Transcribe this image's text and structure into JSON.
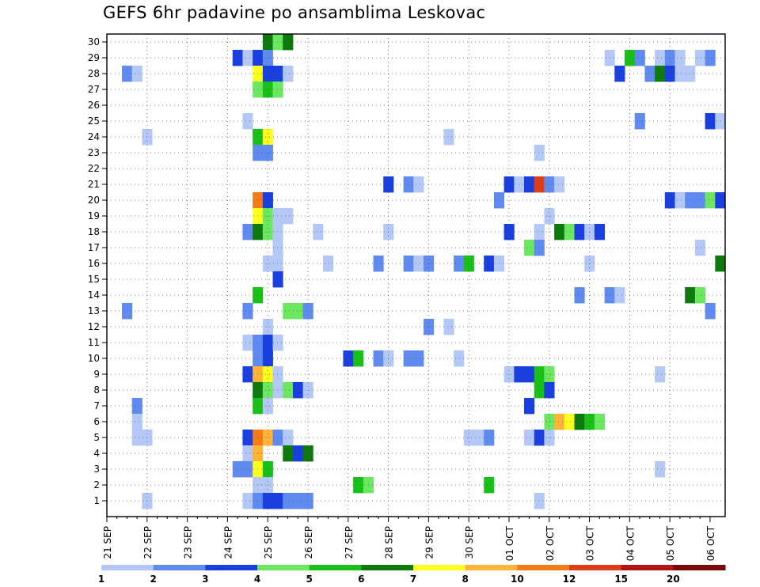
{
  "chart_data": {
    "type": "heatmap",
    "title": "GEFS 6hr padavine po ansamblima Leskovac",
    "x_ticks": [
      "21 SEP",
      "22 SEP",
      "23 SEP",
      "24 SEP",
      "25 SEP",
      "26 SEP",
      "27 SEP",
      "28 SEP",
      "29 SEP",
      "30 SEP",
      "01 OCT",
      "02 OCT",
      "03 OCT",
      "04 OCT",
      "05 OCT",
      "06 OCT"
    ],
    "x_range": [
      "2019-09-21 00Z",
      "2019-10-06 06Z"
    ],
    "x_step_hours": 6,
    "y_ticks": [
      1,
      2,
      3,
      4,
      5,
      6,
      7,
      8,
      9,
      10,
      11,
      12,
      13,
      14,
      15,
      16,
      17,
      18,
      19,
      20,
      21,
      22,
      23,
      24,
      25,
      26,
      27,
      28,
      29,
      30
    ],
    "grid": "dotted",
    "legend": {
      "position": "bottom",
      "bins": [
        {
          "label": "1",
          "color": "#b4c8f8"
        },
        {
          "label": "2",
          "color": "#5f8af0"
        },
        {
          "label": "3",
          "color": "#1a3fe0"
        },
        {
          "label": "4",
          "color": "#6ce860"
        },
        {
          "label": "5",
          "color": "#18c018"
        },
        {
          "label": "6",
          "color": "#0e7a0e"
        },
        {
          "label": "7",
          "color": "#ffff20"
        },
        {
          "label": "8",
          "color": "#ffb438"
        },
        {
          "label": "10",
          "color": "#f57a18"
        },
        {
          "label": "12",
          "color": "#e03c18"
        },
        {
          "label": "15",
          "color": "#b41414"
        },
        {
          "label": "20",
          "color": "#780a0a"
        }
      ]
    },
    "cells": [
      [
        "25 SEP 00Z",
        30,
        "6"
      ],
      [
        "25 SEP 06Z",
        30,
        "4"
      ],
      [
        "25 SEP 12Z",
        30,
        "6"
      ],
      [
        "24 SEP 06Z",
        29,
        "3"
      ],
      [
        "24 SEP 12Z",
        29,
        "1"
      ],
      [
        "24 SEP 18Z",
        29,
        "3"
      ],
      [
        "25 SEP 00Z",
        29,
        "2"
      ],
      [
        "03 OCT 12Z",
        29,
        "1"
      ],
      [
        "04 OCT 00Z",
        29,
        "5"
      ],
      [
        "04 OCT 06Z",
        29,
        "2"
      ],
      [
        "04 OCT 18Z",
        29,
        "1"
      ],
      [
        "05 OCT 00Z",
        29,
        "2"
      ],
      [
        "05 OCT 06Z",
        29,
        "1"
      ],
      [
        "05 OCT 18Z",
        29,
        "1"
      ],
      [
        "06 OCT 00Z",
        29,
        "2"
      ],
      [
        "21 SEP 12Z",
        28,
        "2"
      ],
      [
        "21 SEP 18Z",
        28,
        "1"
      ],
      [
        "24 SEP 18Z",
        28,
        "7"
      ],
      [
        "25 SEP 00Z",
        28,
        "3"
      ],
      [
        "25 SEP 06Z",
        28,
        "3"
      ],
      [
        "25 SEP 12Z",
        28,
        "1"
      ],
      [
        "03 OCT 18Z",
        28,
        "3"
      ],
      [
        "04 OCT 12Z",
        28,
        "2"
      ],
      [
        "04 OCT 18Z",
        28,
        "6"
      ],
      [
        "05 OCT 00Z",
        28,
        "3"
      ],
      [
        "05 OCT 06Z",
        28,
        "1"
      ],
      [
        "05 OCT 12Z",
        28,
        "1"
      ],
      [
        "24 SEP 18Z",
        27,
        "4"
      ],
      [
        "25 SEP 00Z",
        27,
        "5"
      ],
      [
        "25 SEP 06Z",
        27,
        "4"
      ],
      [
        "24 SEP 12Z",
        25,
        "1"
      ],
      [
        "04 OCT 06Z",
        25,
        "2"
      ],
      [
        "06 OCT 00Z",
        25,
        "3"
      ],
      [
        "06 OCT 06Z",
        25,
        "1"
      ],
      [
        "22 SEP 00Z",
        24,
        "1"
      ],
      [
        "24 SEP 18Z",
        24,
        "5"
      ],
      [
        "25 SEP 00Z",
        24,
        "7"
      ],
      [
        "29 SEP 12Z",
        24,
        "1"
      ],
      [
        "24 SEP 18Z",
        23,
        "2"
      ],
      [
        "25 SEP 00Z",
        23,
        "2"
      ],
      [
        "01 OCT 18Z",
        23,
        "1"
      ],
      [
        "28 SEP 00Z",
        21,
        "3"
      ],
      [
        "28 SEP 12Z",
        21,
        "2"
      ],
      [
        "28 SEP 18Z",
        21,
        "1"
      ],
      [
        "01 OCT 00Z",
        21,
        "3"
      ],
      [
        "01 OCT 06Z",
        21,
        "1"
      ],
      [
        "01 OCT 12Z",
        21,
        "3"
      ],
      [
        "01 OCT 18Z",
        21,
        "12"
      ],
      [
        "02 OCT 00Z",
        21,
        "2"
      ],
      [
        "02 OCT 06Z",
        21,
        "1"
      ],
      [
        "24 SEP 18Z",
        20,
        "10"
      ],
      [
        "25 SEP 00Z",
        20,
        "3"
      ],
      [
        "30 SEP 18Z",
        20,
        "2"
      ],
      [
        "05 OCT 00Z",
        20,
        "3"
      ],
      [
        "05 OCT 06Z",
        20,
        "1"
      ],
      [
        "05 OCT 12Z",
        20,
        "2"
      ],
      [
        "05 OCT 18Z",
        20,
        "2"
      ],
      [
        "06 OCT 00Z",
        20,
        "4"
      ],
      [
        "06 OCT 06Z",
        20,
        "3"
      ],
      [
        "24 SEP 18Z",
        19,
        "7"
      ],
      [
        "25 SEP 00Z",
        19,
        "4"
      ],
      [
        "25 SEP 06Z",
        19,
        "1"
      ],
      [
        "25 SEP 12Z",
        19,
        "1"
      ],
      [
        "02 OCT 00Z",
        19,
        "1"
      ],
      [
        "24 SEP 12Z",
        18,
        "2"
      ],
      [
        "24 SEP 18Z",
        18,
        "6"
      ],
      [
        "25 SEP 00Z",
        18,
        "4"
      ],
      [
        "25 SEP 06Z",
        18,
        "1"
      ],
      [
        "26 SEP 06Z",
        18,
        "1"
      ],
      [
        "28 SEP 00Z",
        18,
        "1"
      ],
      [
        "01 OCT 00Z",
        18,
        "3"
      ],
      [
        "01 OCT 18Z",
        18,
        "1"
      ],
      [
        "02 OCT 06Z",
        18,
        "6"
      ],
      [
        "02 OCT 12Z",
        18,
        "4"
      ],
      [
        "02 OCT 18Z",
        18,
        "3"
      ],
      [
        "03 OCT 00Z",
        18,
        "1"
      ],
      [
        "03 OCT 06Z",
        18,
        "3"
      ],
      [
        "25 SEP 06Z",
        17,
        "1"
      ],
      [
        "01 OCT 12Z",
        17,
        "4"
      ],
      [
        "01 OCT 18Z",
        17,
        "2"
      ],
      [
        "05 OCT 18Z",
        17,
        "1"
      ],
      [
        "25 SEP 00Z",
        16,
        "1"
      ],
      [
        "25 SEP 06Z",
        16,
        "1"
      ],
      [
        "26 SEP 12Z",
        16,
        "1"
      ],
      [
        "27 SEP 18Z",
        16,
        "2"
      ],
      [
        "28 SEP 12Z",
        16,
        "2"
      ],
      [
        "28 SEP 18Z",
        16,
        "1"
      ],
      [
        "29 SEP 00Z",
        16,
        "2"
      ],
      [
        "29 SEP 18Z",
        16,
        "2"
      ],
      [
        "30 SEP 00Z",
        16,
        "5"
      ],
      [
        "30 SEP 12Z",
        16,
        "3"
      ],
      [
        "30 SEP 18Z",
        16,
        "1"
      ],
      [
        "03 OCT 00Z",
        16,
        "1"
      ],
      [
        "06 OCT 06Z",
        16,
        "6"
      ],
      [
        "25 SEP 06Z",
        15,
        "3"
      ],
      [
        "24 SEP 18Z",
        14,
        "5"
      ],
      [
        "02 OCT 18Z",
        14,
        "2"
      ],
      [
        "03 OCT 12Z",
        14,
        "2"
      ],
      [
        "03 OCT 18Z",
        14,
        "1"
      ],
      [
        "05 OCT 12Z",
        14,
        "6"
      ],
      [
        "05 OCT 18Z",
        14,
        "4"
      ],
      [
        "21 SEP 12Z",
        13,
        "2"
      ],
      [
        "24 SEP 12Z",
        13,
        "2"
      ],
      [
        "25 SEP 12Z",
        13,
        "4"
      ],
      [
        "25 SEP 18Z",
        13,
        "4"
      ],
      [
        "26 SEP 00Z",
        13,
        "2"
      ],
      [
        "06 OCT 00Z",
        13,
        "2"
      ],
      [
        "25 SEP 00Z",
        12,
        "1"
      ],
      [
        "29 SEP 00Z",
        12,
        "2"
      ],
      [
        "29 SEP 12Z",
        12,
        "1"
      ],
      [
        "24 SEP 12Z",
        11,
        "1"
      ],
      [
        "24 SEP 18Z",
        11,
        "2"
      ],
      [
        "25 SEP 00Z",
        11,
        "3"
      ],
      [
        "25 SEP 06Z",
        11,
        "1"
      ],
      [
        "24 SEP 18Z",
        10,
        "2"
      ],
      [
        "25 SEP 00Z",
        10,
        "3"
      ],
      [
        "27 SEP 00Z",
        10,
        "3"
      ],
      [
        "27 SEP 06Z",
        10,
        "5"
      ],
      [
        "27 SEP 18Z",
        10,
        "2"
      ],
      [
        "28 SEP 00Z",
        10,
        "1"
      ],
      [
        "28 SEP 12Z",
        10,
        "2"
      ],
      [
        "28 SEP 18Z",
        10,
        "2"
      ],
      [
        "29 SEP 18Z",
        10,
        "1"
      ],
      [
        "24 SEP 12Z",
        9,
        "3"
      ],
      [
        "24 SEP 18Z",
        9,
        "8"
      ],
      [
        "25 SEP 00Z",
        9,
        "7"
      ],
      [
        "25 SEP 06Z",
        9,
        "1"
      ],
      [
        "01 OCT 00Z",
        9,
        "1"
      ],
      [
        "01 OCT 06Z",
        9,
        "3"
      ],
      [
        "01 OCT 12Z",
        9,
        "3"
      ],
      [
        "01 OCT 18Z",
        9,
        "5"
      ],
      [
        "02 OCT 00Z",
        9,
        "4"
      ],
      [
        "04 OCT 18Z",
        9,
        "1"
      ],
      [
        "24 SEP 18Z",
        8,
        "6"
      ],
      [
        "25 SEP 00Z",
        8,
        "4"
      ],
      [
        "25 SEP 06Z",
        8,
        "1"
      ],
      [
        "25 SEP 12Z",
        8,
        "4"
      ],
      [
        "25 SEP 18Z",
        8,
        "3"
      ],
      [
        "26 SEP 00Z",
        8,
        "1"
      ],
      [
        "01 OCT 18Z",
        8,
        "5"
      ],
      [
        "02 OCT 00Z",
        8,
        "3"
      ],
      [
        "21 SEP 18Z",
        7,
        "2"
      ],
      [
        "24 SEP 18Z",
        7,
        "5"
      ],
      [
        "25 SEP 00Z",
        7,
        "1"
      ],
      [
        "01 OCT 12Z",
        7,
        "3"
      ],
      [
        "21 SEP 18Z",
        6,
        "1"
      ],
      [
        "02 OCT 00Z",
        6,
        "4"
      ],
      [
        "02 OCT 06Z",
        6,
        "8"
      ],
      [
        "02 OCT 12Z",
        6,
        "7"
      ],
      [
        "02 OCT 18Z",
        6,
        "6"
      ],
      [
        "03 OCT 00Z",
        6,
        "5"
      ],
      [
        "03 OCT 06Z",
        6,
        "4"
      ],
      [
        "21 SEP 18Z",
        5,
        "1"
      ],
      [
        "22 SEP 00Z",
        5,
        "1"
      ],
      [
        "24 SEP 12Z",
        5,
        "3"
      ],
      [
        "24 SEP 18Z",
        5,
        "10"
      ],
      [
        "25 SEP 00Z",
        5,
        "8"
      ],
      [
        "25 SEP 06Z",
        5,
        "2"
      ],
      [
        "25 SEP 12Z",
        5,
        "1"
      ],
      [
        "30 SEP 00Z",
        5,
        "1"
      ],
      [
        "30 SEP 06Z",
        5,
        "1"
      ],
      [
        "30 SEP 12Z",
        5,
        "2"
      ],
      [
        "01 OCT 12Z",
        5,
        "1"
      ],
      [
        "01 OCT 18Z",
        5,
        "3"
      ],
      [
        "02 OCT 00Z",
        5,
        "1"
      ],
      [
        "24 SEP 12Z",
        4,
        "1"
      ],
      [
        "24 SEP 18Z",
        4,
        "8"
      ],
      [
        "25 SEP 12Z",
        4,
        "6"
      ],
      [
        "25 SEP 18Z",
        4,
        "3"
      ],
      [
        "26 SEP 00Z",
        4,
        "6"
      ],
      [
        "24 SEP 06Z",
        3,
        "2"
      ],
      [
        "24 SEP 12Z",
        3,
        "2"
      ],
      [
        "24 SEP 18Z",
        3,
        "7"
      ],
      [
        "25 SEP 00Z",
        3,
        "5"
      ],
      [
        "04 OCT 18Z",
        3,
        "1"
      ],
      [
        "24 SEP 18Z",
        2,
        "1"
      ],
      [
        "25 SEP 00Z",
        2,
        "1"
      ],
      [
        "27 SEP 06Z",
        2,
        "5"
      ],
      [
        "27 SEP 12Z",
        2,
        "4"
      ],
      [
        "30 SEP 12Z",
        2,
        "5"
      ],
      [
        "22 SEP 00Z",
        1,
        "1"
      ],
      [
        "24 SEP 12Z",
        1,
        "1"
      ],
      [
        "24 SEP 18Z",
        1,
        "2"
      ],
      [
        "25 SEP 00Z",
        1,
        "3"
      ],
      [
        "25 SEP 06Z",
        1,
        "3"
      ],
      [
        "25 SEP 12Z",
        1,
        "2"
      ],
      [
        "25 SEP 18Z",
        1,
        "2"
      ],
      [
        "26 SEP 00Z",
        1,
        "2"
      ],
      [
        "01 OCT 18Z",
        1,
        "1"
      ]
    ]
  }
}
